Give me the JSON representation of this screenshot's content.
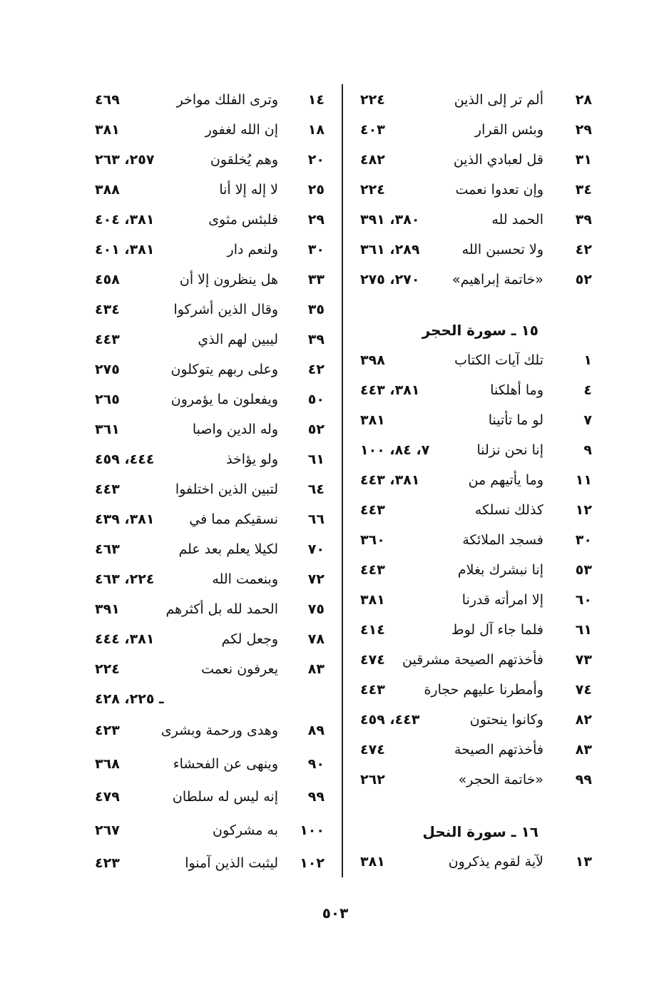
{
  "right_column": {
    "rows_top": [
      {
        "n": "٢٨",
        "t": "ألم تر إلى الذين",
        "p": "٢٢٤"
      },
      {
        "n": "٢٩",
        "t": "وبئس القرار",
        "p": "٤٠٣"
      },
      {
        "n": "٣١",
        "t": "قل لعبادي الذين",
        "p": "٤٨٢"
      },
      {
        "n": "٣٤",
        "t": "وإن تعدوا نعمت",
        "p": "٢٢٤"
      },
      {
        "n": "٣٩",
        "t": "الحمد لله",
        "p": "٣٨٠، ٣٩١"
      },
      {
        "n": "٤٢",
        "t": "ولا تحسبن الله",
        "p": "٢٨٩، ٣٦١"
      },
      {
        "n": "٥٢",
        "t": "«خاتمة إبراهيم»",
        "p": "٢٧٠، ٢٧٥"
      }
    ],
    "heading_hijr": "١٥ ـ سورة الحجر",
    "rows_hijr": [
      {
        "n": "١",
        "t": "تلك آيات الكتاب",
        "p": "٣٩٨"
      },
      {
        "n": "٤",
        "t": "وما أهلكنا",
        "p": "٣٨١، ٤٤٣"
      },
      {
        "n": "٧",
        "t": "لو ما تأتينا",
        "p": "٣٨١"
      },
      {
        "n": "٩",
        "t": "إنا نحن نزلنا",
        "p": "٧، ٨٤، ١٠٠"
      },
      {
        "n": "١١",
        "t": "وما يأتيهم من",
        "p": "٣٨١، ٤٤٣"
      },
      {
        "n": "١٢",
        "t": "كذلك نسلكه",
        "p": "٤٤٣"
      },
      {
        "n": "٣٠",
        "t": "فسجد الملائكة",
        "p": "٣٦٠"
      },
      {
        "n": "٥٣",
        "t": "إنا نبشرك بغلام",
        "p": "٤٤٣"
      },
      {
        "n": "٦٠",
        "t": "إلا امرأته قدرنا",
        "p": "٣٨١"
      },
      {
        "n": "٦١",
        "t": "فلما جاء آل لوط",
        "p": "٤١٤"
      },
      {
        "n": "٧٣",
        "t": "فأخذتهم الصيحة مشرقين",
        "p": "٤٧٤"
      },
      {
        "n": "٧٤",
        "t": "وأمطرنا عليهم حجارة",
        "p": "٤٤٣"
      },
      {
        "n": "٨٢",
        "t": "وكانوا ينحتون",
        "p": "٤٤٣، ٤٥٩"
      },
      {
        "n": "٨٣",
        "t": "فأخذتهم الصيحة",
        "p": "٤٧٤"
      },
      {
        "n": "٩٩",
        "t": "«خاتمة الحجر»",
        "p": "٢٦٢"
      }
    ],
    "heading_nahl": "١٦ ـ سورة النحل",
    "rows_nahl": [
      {
        "n": "١٣",
        "t": "لآية لقوم يذكرون",
        "p": "٣٨١"
      }
    ]
  },
  "left_column": {
    "rows_a": [
      {
        "n": "١٤",
        "t": "وترى الفلك مواخر",
        "p": "٤٦٩"
      },
      {
        "n": "١٨",
        "t": "إن الله لغفور",
        "p": "٣٨١"
      },
      {
        "n": "٢٠",
        "t": "وهم يُخلقون",
        "p": "٢٥٧، ٢٦٣"
      },
      {
        "n": "٢٥",
        "t": "لا إله إلا أنا",
        "p": "٣٨٨"
      },
      {
        "n": "٢٩",
        "t": "فلبئس مثوى",
        "p": "٣٨١، ٤٠٤"
      },
      {
        "n": "٣٠",
        "t": "ولنعم دار",
        "p": "٣٨١، ٤٠١"
      },
      {
        "n": "٣٣",
        "t": "هل ينظرون إلا أن",
        "p": "٤٥٨"
      },
      {
        "n": "٣٥",
        "t": "وقال الذين أشركوا",
        "p": "٤٣٤"
      },
      {
        "n": "٣٩",
        "t": "ليبين لهم الذي",
        "p": "٤٤٣"
      },
      {
        "n": "٤٢",
        "t": "وعلى ربهم يتوكلون",
        "p": "٢٧٥"
      },
      {
        "n": "٥٠",
        "t": "ويفعلون ما يؤمرون",
        "p": "٢٦٥"
      },
      {
        "n": "٥٢",
        "t": "وله الدين واصبا",
        "p": "٣٦١"
      },
      {
        "n": "٦١",
        "t": "ولو يؤاخذ",
        "p": "٤٤٤، ٤٥٩"
      },
      {
        "n": "٦٤",
        "t": "لتبين الذين اختلفوا",
        "p": "٤٤٣"
      },
      {
        "n": "٦٦",
        "t": "نسقيكم مما في",
        "p": "٣٨١، ٤٣٩"
      },
      {
        "n": "٧٠",
        "t": "لكيلا يعلم بعد علم",
        "p": "٤٦٣"
      },
      {
        "n": "٧٢",
        "t": "وبنعمت الله",
        "p": "٢٢٤، ٤٦٣"
      },
      {
        "n": "٧٥",
        "t": "الحمد لله بل أكثرهم",
        "p": "٣٩١"
      },
      {
        "n": "٧٨",
        "t": "وجعل لكم",
        "p": "٣٨١، ٤٤٤"
      },
      {
        "n": "٨٣",
        "t": "يعرفون نعمت",
        "p": "٢٢٤"
      }
    ],
    "continuation": "ـ ٢٢٥، ٤٢٨",
    "rows_b": [
      {
        "n": "٨٩",
        "t": "وهدى ورحمة وبشرى",
        "p": "٤٢٣"
      },
      {
        "n": "٩٠",
        "t": "وينهى عن الفحشاء",
        "p": "٣٦٨"
      },
      {
        "n": "٩٩",
        "t": "إنه ليس له سلطان",
        "p": "٤٧٩"
      },
      {
        "n": "١٠٠",
        "t": "به مشركون",
        "p": "٢٦٧"
      },
      {
        "n": "١٠٢",
        "t": "ليثبت الذين آمنوا",
        "p": "٤٢٣"
      }
    ]
  },
  "page_number": "٥٠٣"
}
